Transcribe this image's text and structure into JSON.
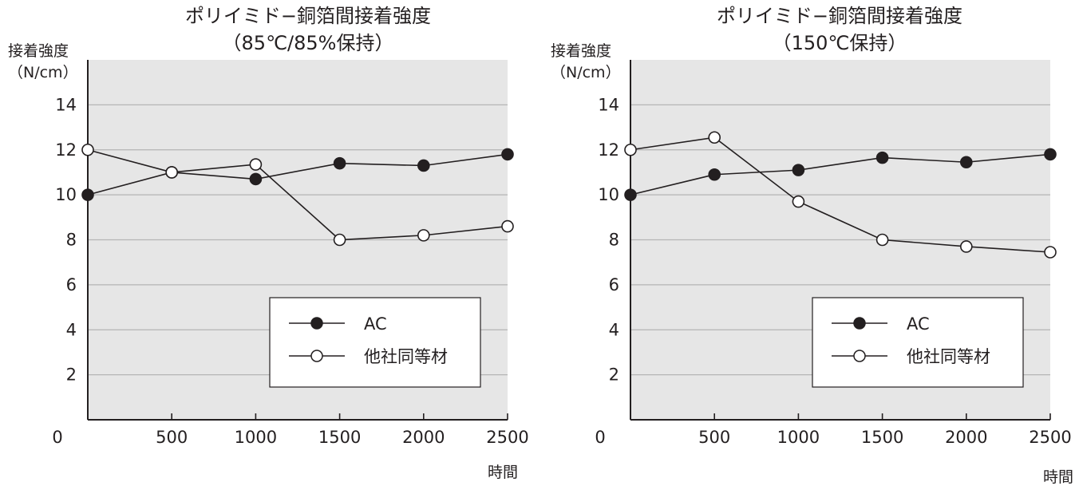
{
  "chart_data": [
    {
      "type": "line",
      "title": "ポリイミド−銅箔間接着強度",
      "subtitle": "（85℃/85%保持）",
      "ylabel": "接着強度",
      "yunit": "（N/cm）",
      "xlabel": "時間",
      "x": [
        0,
        500,
        1000,
        1500,
        2000,
        2500
      ],
      "xticks": [
        "500",
        "1000",
        "1500",
        "2000",
        "2500"
      ],
      "origin_label": "0",
      "yticks": [
        "2",
        "4",
        "6",
        "8",
        "10",
        "12",
        "14"
      ],
      "xlim": [
        0,
        2500
      ],
      "ylim": [
        0,
        16
      ],
      "grid": true,
      "legend_position": "bottom-right",
      "series": [
        {
          "name": "AC",
          "marker": "filled-circle",
          "values": [
            10.0,
            11.0,
            10.7,
            11.4,
            11.3,
            11.8
          ]
        },
        {
          "name": "他社同等材",
          "marker": "open-circle",
          "values": [
            12.0,
            11.0,
            11.35,
            8.0,
            8.2,
            8.6
          ]
        }
      ]
    },
    {
      "type": "line",
      "title": "ポリイミド−銅箔間接着強度",
      "subtitle": "（150℃保持）",
      "ylabel": "接着強度",
      "yunit": "（N/cm）",
      "xlabel": "時間",
      "x": [
        0,
        500,
        1000,
        1500,
        2000,
        2500
      ],
      "xticks": [
        "500",
        "1000",
        "1500",
        "2000",
        "2500"
      ],
      "origin_label": "0",
      "yticks": [
        "2",
        "4",
        "6",
        "8",
        "10",
        "12",
        "14"
      ],
      "xlim": [
        0,
        2500
      ],
      "ylim": [
        0,
        16
      ],
      "grid": true,
      "legend_position": "bottom-right",
      "series": [
        {
          "name": "AC",
          "marker": "filled-circle",
          "values": [
            10.0,
            10.9,
            11.1,
            11.65,
            11.45,
            11.8
          ]
        },
        {
          "name": "他社同等材",
          "marker": "open-circle",
          "values": [
            12.0,
            12.55,
            9.7,
            8.0,
            7.7,
            7.45
          ]
        }
      ]
    }
  ],
  "colors": {
    "plot_background": "#e6e6e6",
    "gridline": "#b4b4b4",
    "ink": "#231f20",
    "legend_background": "#ffffff"
  }
}
